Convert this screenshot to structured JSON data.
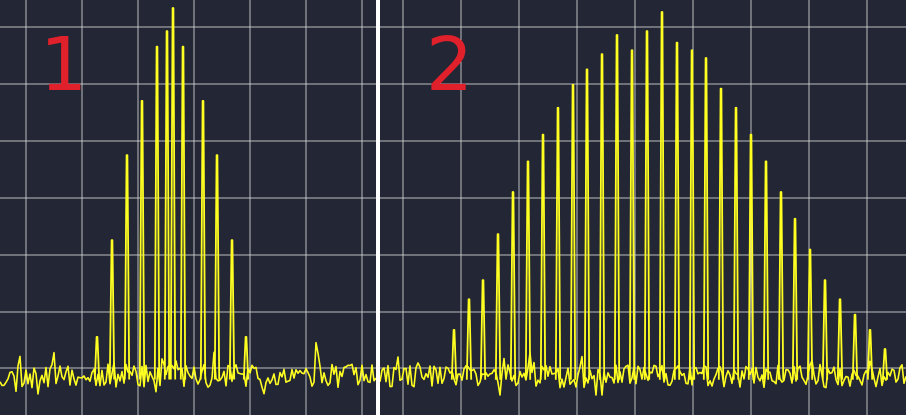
{
  "colors": {
    "background": "#232634",
    "grid": "#d8d8d8",
    "trace": "#ffff22",
    "label": "#e0202a",
    "divider": "#ffffff"
  },
  "chart_data": [
    {
      "type": "line",
      "panel_label": "1",
      "grid": true,
      "x_range": [
        0,
        376
      ],
      "y_range": [
        0,
        100
      ],
      "noise_floor": [
        2,
        8
      ],
      "peaks": [
        {
          "x": 97,
          "y": 15
        },
        {
          "x": 112,
          "y": 40
        },
        {
          "x": 127,
          "y": 62
        },
        {
          "x": 142,
          "y": 76
        },
        {
          "x": 157,
          "y": 90
        },
        {
          "x": 167,
          "y": 94
        },
        {
          "x": 173,
          "y": 100
        },
        {
          "x": 183,
          "y": 90
        },
        {
          "x": 203,
          "y": 76
        },
        {
          "x": 217,
          "y": 62
        },
        {
          "x": 232,
          "y": 40
        },
        {
          "x": 246,
          "y": 15
        }
      ]
    },
    {
      "type": "line",
      "panel_label": "2",
      "grid": true,
      "x_range": [
        0,
        526
      ],
      "y_range": [
        0,
        100
      ],
      "noise_floor": [
        2,
        8
      ],
      "peaks": [
        {
          "x": 74,
          "y": 17
        },
        {
          "x": 89,
          "y": 25
        },
        {
          "x": 103,
          "y": 30
        },
        {
          "x": 118,
          "y": 42
        },
        {
          "x": 133,
          "y": 53
        },
        {
          "x": 148,
          "y": 61
        },
        {
          "x": 163,
          "y": 68
        },
        {
          "x": 178,
          "y": 75
        },
        {
          "x": 193,
          "y": 81
        },
        {
          "x": 207,
          "y": 85
        },
        {
          "x": 222,
          "y": 89
        },
        {
          "x": 237,
          "y": 94
        },
        {
          "x": 252,
          "y": 90
        },
        {
          "x": 267,
          "y": 95
        },
        {
          "x": 282,
          "y": 100
        },
        {
          "x": 297,
          "y": 92
        },
        {
          "x": 312,
          "y": 90
        },
        {
          "x": 326,
          "y": 88
        },
        {
          "x": 341,
          "y": 80
        },
        {
          "x": 356,
          "y": 75
        },
        {
          "x": 371,
          "y": 68
        },
        {
          "x": 386,
          "y": 61
        },
        {
          "x": 401,
          "y": 53
        },
        {
          "x": 415,
          "y": 46
        },
        {
          "x": 430,
          "y": 38
        },
        {
          "x": 445,
          "y": 30
        },
        {
          "x": 460,
          "y": 25
        },
        {
          "x": 475,
          "y": 21
        },
        {
          "x": 490,
          "y": 17
        },
        {
          "x": 505,
          "y": 12
        }
      ]
    }
  ]
}
